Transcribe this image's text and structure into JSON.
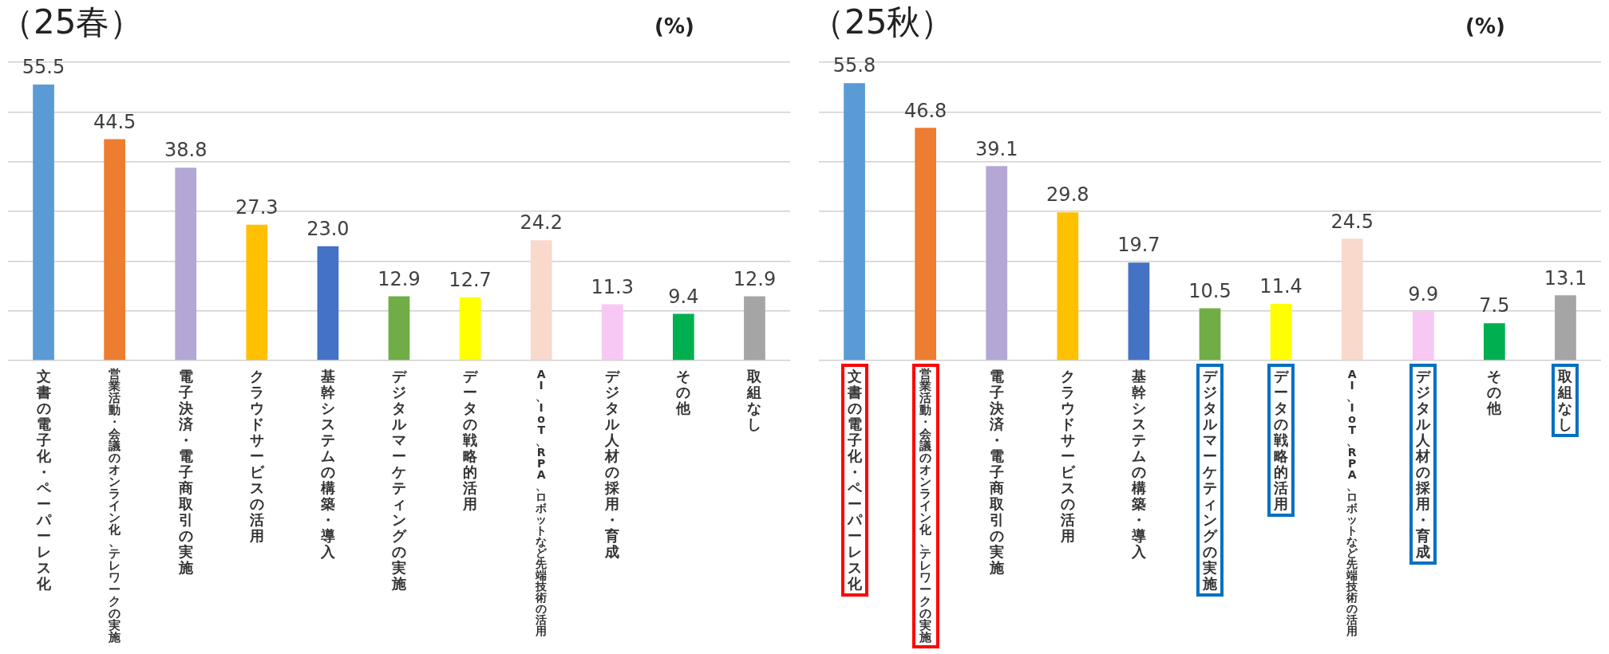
{
  "chart_data": [
    {
      "type": "bar",
      "title": "（25春）",
      "ylabel": "(%)",
      "categories": [
        "文書の電子化・ペーパーレス化",
        "営業活動・会議のオンライン化、テレワークの実施",
        "電子決済・電子商取引の実施",
        "クラウドサービスの活用",
        "基幹システムの構築・導入",
        "デジタルマーケティングの実施",
        "データの戦略的活用",
        "AI、IoT、RPA、ロボットなど先端技術の活用",
        "デジタル人材の採用・育成",
        "その他",
        "取組なし"
      ],
      "values": [
        55.5,
        44.5,
        38.8,
        27.3,
        23.0,
        12.9,
        12.7,
        24.2,
        11.3,
        9.4,
        12.9
      ],
      "colors": [
        "#5b9bd5",
        "#ed7d31",
        "#b4a7d6",
        "#ffc000",
        "#4472c4",
        "#70ad47",
        "#ffff00",
        "#f8d9cc",
        "#f8c8f4",
        "#00b050",
        "#a5a5a5"
      ],
      "value_labels": [
        "55.5",
        "44.5",
        "38.8",
        "27.3",
        "23.0",
        "12.9",
        "12.7",
        "24.2",
        "11.3",
        "9.4",
        "12.9"
      ],
      "ylim": [
        0,
        60
      ],
      "yticks": [
        {
          "value": 0,
          "label": null
        },
        {
          "value": 10,
          "label": null
        },
        {
          "value": 20,
          "label": null
        },
        {
          "value": 30,
          "label": null
        },
        {
          "value": 40,
          "label": null
        },
        {
          "value": 50,
          "label": null
        },
        {
          "value": 60,
          "label": null
        }
      ],
      "grid": "y",
      "tick_labels": "x"
    },
    {
      "type": "bar",
      "title": "（25秋）",
      "ylabel": "(%)",
      "categories": [
        "文書の電子化・ペーパーレス化",
        "営業活動・会議のオンライン化、テレワークの実施",
        "電子決済・電子商取引の実施",
        "クラウドサービスの活用",
        "基幹システムの構築・導入",
        "デジタルマーケティングの実施",
        "データの戦略的活用",
        "AI、IoT、RPA、ロボットなど先端技術の活用",
        "デジタル人材の採用・育成",
        "その他",
        "取組なし"
      ],
      "values": [
        55.8,
        46.8,
        39.1,
        29.8,
        19.7,
        10.5,
        11.4,
        24.5,
        9.9,
        7.5,
        13.1
      ],
      "colors": [
        "#5b9bd5",
        "#ed7d31",
        "#b4a7d6",
        "#ffc000",
        "#4472c4",
        "#70ad47",
        "#ffff00",
        "#f8d9cc",
        "#f8c8f4",
        "#00b050",
        "#a5a5a5"
      ],
      "value_labels": [
        "55.8",
        "46.8",
        "39.1",
        "29.8",
        "19.7",
        "10.5",
        "11.4",
        "24.5",
        "9.9",
        "7.5",
        "13.1"
      ],
      "ylim": [
        0,
        60
      ],
      "yticks": [
        {
          "value": 0,
          "label": null
        },
        {
          "value": 10,
          "label": null
        },
        {
          "value": 20,
          "label": null
        },
        {
          "value": 30,
          "label": null
        },
        {
          "value": 40,
          "label": null
        },
        {
          "value": 50,
          "label": null
        },
        {
          "value": 60,
          "label": null
        }
      ],
      "grid": "y",
      "tick_labels": "x"
    }
  ]
}
